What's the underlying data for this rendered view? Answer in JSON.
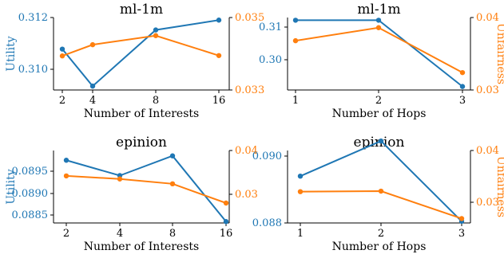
{
  "colors": {
    "utility": "#1f77b4",
    "unfairness": "#ff7f0e"
  },
  "chart_data": [
    {
      "type": "line",
      "title": "ml-1m",
      "xlabel": "Number of Interests",
      "ylabel_left": "Utility",
      "ylabel_right": "",
      "x_ticks": [
        "2",
        "4",
        "8",
        "16"
      ],
      "y_left_ticks": [
        "0.310",
        "0.312"
      ],
      "y_right_ticks": [
        "0.033",
        "0.035"
      ],
      "ylim_left": [
        0.3093,
        0.3121
      ],
      "ylim_right": [
        0.033,
        0.035
      ],
      "series": [
        {
          "axis": "left",
          "values": [
            0.31078,
            0.30935,
            0.31152,
            0.3119
          ]
        },
        {
          "axis": "right",
          "values": [
            0.03394,
            0.03425,
            0.0345,
            0.03395
          ]
        }
      ]
    },
    {
      "type": "line",
      "title": "ml-1m",
      "xlabel": "Number of Hops",
      "ylabel_left": "",
      "ylabel_right": "Unfairness",
      "x_ticks": [
        "1",
        "2",
        "3"
      ],
      "y_left_ticks": [
        "0.30",
        "0.31"
      ],
      "y_right_ticks": [
        "0.03",
        "0.04"
      ],
      "ylim_left": [
        0.2912,
        0.313
      ],
      "ylim_right": [
        0.03,
        0.04
      ],
      "series": [
        {
          "axis": "left",
          "values": [
            0.3121,
            0.3121,
            0.2918
          ]
        },
        {
          "axis": "right",
          "values": [
            0.0368,
            0.0386,
            0.0324
          ]
        }
      ]
    },
    {
      "type": "line",
      "title": "epinion",
      "xlabel": "Number of Interests",
      "ylabel_left": "Utility",
      "ylabel_right": "",
      "x_ticks": [
        "2",
        "4",
        "8",
        "16"
      ],
      "y_left_ticks": [
        "0.0885",
        "0.0890",
        "0.0895"
      ],
      "y_right_ticks": [
        "0.03",
        "0.04"
      ],
      "ylim_left": [
        0.0883,
        0.0899
      ],
      "ylim_right": [
        0.028,
        0.04
      ],
      "series": [
        {
          "axis": "left",
          "values": [
            0.08975,
            0.0894,
            0.08985,
            0.08835
          ]
        },
        {
          "axis": "right",
          "values": [
            0.0342,
            0.0335,
            0.0324,
            0.028
          ]
        }
      ]
    },
    {
      "type": "line",
      "title": "epinion",
      "xlabel": "Number of Hops",
      "ylabel_left": "",
      "ylabel_right": "Unfairness",
      "x_ticks": [
        "1",
        "2",
        "3"
      ],
      "y_left_ticks": [
        "0.088",
        "0.090"
      ],
      "y_right_ticks": [
        "0.03",
        "0.04"
      ],
      "ylim_left": [
        0.088,
        0.0905
      ],
      "ylim_right": [
        0.0265,
        0.04
      ],
      "series": [
        {
          "axis": "left",
          "values": [
            0.0894,
            0.09045,
            0.08805
          ]
        },
        {
          "axis": "right",
          "values": [
            0.03205,
            0.03215,
            0.02685
          ]
        }
      ]
    }
  ]
}
